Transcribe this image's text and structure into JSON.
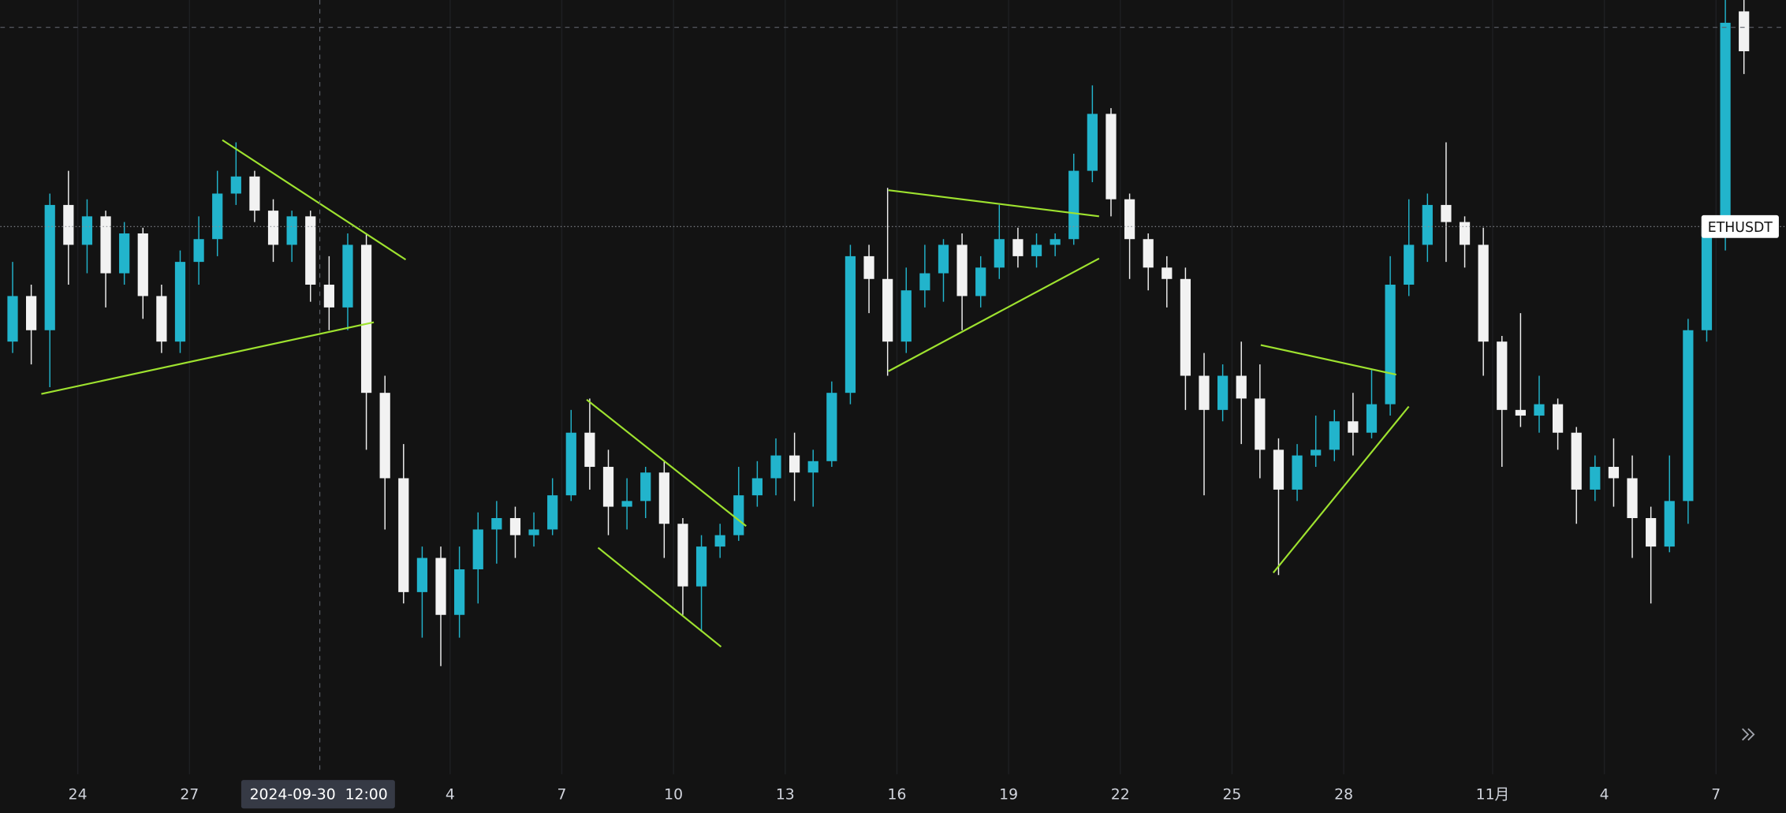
{
  "chart_data": {
    "type": "candlestick",
    "up_color": "#22b4cc",
    "down_color": "#f2f2f2",
    "grid": true,
    "xlim": [
      -0.16,
      95.74
    ],
    "ylim": [
      2220,
      2900
    ],
    "xticks": [
      {
        "value": 4,
        "label": "24"
      },
      {
        "value": 10,
        "label": "27"
      },
      {
        "value": 24,
        "label": "4"
      },
      {
        "value": 30,
        "label": "7"
      },
      {
        "value": 36,
        "label": "10"
      },
      {
        "value": 42,
        "label": "13"
      },
      {
        "value": 48,
        "label": "16"
      },
      {
        "value": 54,
        "label": "19"
      },
      {
        "value": 60,
        "label": "22"
      },
      {
        "value": 66,
        "label": "25"
      },
      {
        "value": 72,
        "label": "28"
      },
      {
        "value": 80,
        "label": "11月"
      },
      {
        "value": 86,
        "label": "4"
      },
      {
        "value": 92,
        "label": "7"
      }
    ],
    "crosshair": {
      "x": 17,
      "y": 2876,
      "label": "2024-09-30  12:00"
    },
    "last_price": {
      "value": 2701,
      "label": "ETHUSDT"
    },
    "open": [
      2600,
      2640,
      2610,
      2720,
      2685,
      2710,
      2660,
      2695,
      2640,
      2600,
      2670,
      2690,
      2730,
      2745,
      2715,
      2685,
      2710,
      2650,
      2630,
      2685,
      2555,
      2480,
      2380,
      2410,
      2360,
      2400,
      2435,
      2445,
      2430,
      2435,
      2465,
      2520,
      2490,
      2455,
      2460,
      2485,
      2440,
      2385,
      2420,
      2430,
      2465,
      2480,
      2500,
      2485,
      2495,
      2555,
      2675,
      2655,
      2600,
      2645,
      2660,
      2685,
      2640,
      2665,
      2690,
      2675,
      2685,
      2690,
      2750,
      2800,
      2725,
      2690,
      2665,
      2655,
      2570,
      2540,
      2570,
      2550,
      2505,
      2470,
      2500,
      2505,
      2530,
      2520,
      2545,
      2650,
      2685,
      2720,
      2705,
      2685,
      2600,
      2540,
      2535,
      2545,
      2520,
      2470,
      2490,
      2480,
      2445,
      2420,
      2460,
      2610,
      2700,
      2890
    ],
    "high": [
      2670,
      2650,
      2730,
      2750,
      2725,
      2715,
      2705,
      2700,
      2650,
      2680,
      2710,
      2750,
      2775,
      2750,
      2725,
      2715,
      2715,
      2675,
      2695,
      2695,
      2570,
      2510,
      2420,
      2420,
      2420,
      2450,
      2460,
      2455,
      2450,
      2480,
      2540,
      2550,
      2505,
      2480,
      2490,
      2495,
      2445,
      2430,
      2440,
      2490,
      2495,
      2515,
      2520,
      2505,
      2565,
      2685,
      2685,
      2735,
      2665,
      2685,
      2690,
      2695,
      2675,
      2720,
      2700,
      2695,
      2695,
      2765,
      2825,
      2805,
      2730,
      2695,
      2675,
      2665,
      2590,
      2580,
      2600,
      2580,
      2515,
      2510,
      2535,
      2540,
      2555,
      2575,
      2675,
      2725,
      2730,
      2775,
      2710,
      2700,
      2605,
      2625,
      2570,
      2550,
      2525,
      2500,
      2515,
      2500,
      2455,
      2500,
      2620,
      2710,
      2910,
      2920
    ],
    "low": [
      2590,
      2580,
      2560,
      2650,
      2660,
      2630,
      2650,
      2620,
      2590,
      2590,
      2650,
      2675,
      2720,
      2705,
      2670,
      2670,
      2635,
      2610,
      2610,
      2505,
      2435,
      2370,
      2340,
      2315,
      2340,
      2370,
      2405,
      2410,
      2420,
      2430,
      2460,
      2470,
      2430,
      2435,
      2445,
      2410,
      2360,
      2345,
      2410,
      2425,
      2455,
      2465,
      2460,
      2455,
      2490,
      2545,
      2625,
      2570,
      2590,
      2630,
      2635,
      2610,
      2630,
      2655,
      2665,
      2665,
      2675,
      2685,
      2740,
      2710,
      2655,
      2645,
      2630,
      2540,
      2465,
      2530,
      2510,
      2480,
      2395,
      2460,
      2490,
      2495,
      2500,
      2515,
      2535,
      2640,
      2670,
      2670,
      2665,
      2570,
      2490,
      2525,
      2520,
      2505,
      2440,
      2460,
      2455,
      2410,
      2370,
      2415,
      2440,
      2600,
      2680,
      2835
    ],
    "close": [
      2640,
      2610,
      2720,
      2685,
      2710,
      2660,
      2695,
      2640,
      2600,
      2670,
      2690,
      2730,
      2745,
      2715,
      2685,
      2710,
      2650,
      2630,
      2685,
      2555,
      2480,
      2380,
      2410,
      2360,
      2400,
      2435,
      2445,
      2430,
      2435,
      2465,
      2520,
      2490,
      2455,
      2460,
      2485,
      2440,
      2385,
      2420,
      2430,
      2465,
      2480,
      2500,
      2485,
      2495,
      2555,
      2675,
      2655,
      2600,
      2645,
      2660,
      2685,
      2640,
      2665,
      2690,
      2675,
      2685,
      2690,
      2750,
      2800,
      2725,
      2690,
      2665,
      2655,
      2570,
      2540,
      2570,
      2550,
      2505,
      2470,
      2500,
      2505,
      2530,
      2520,
      2545,
      2650,
      2685,
      2720,
      2705,
      2685,
      2600,
      2540,
      2535,
      2545,
      2520,
      2470,
      2490,
      2480,
      2445,
      2420,
      2460,
      2610,
      2700,
      2880,
      2855
    ]
  }
}
